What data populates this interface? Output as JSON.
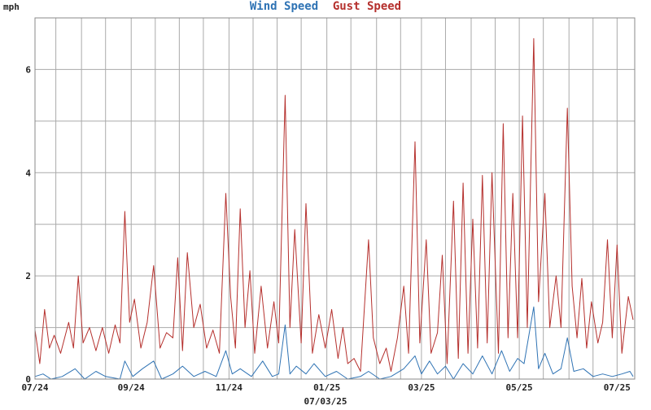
{
  "colors": {
    "wind": "#2f73b4",
    "gust": "#b5302d",
    "grid": "#aaaaaa",
    "frame": "#888888"
  },
  "chart_data": {
    "type": "line",
    "title": [
      "Wind Speed",
      "Gust Speed"
    ],
    "ylabel": "mph",
    "xlabel": "07/03/25",
    "ylim": [
      0,
      7
    ],
    "y_ticks": [
      0,
      2,
      4,
      6
    ],
    "x_range": [
      "2024-07-03",
      "2025-07-12"
    ],
    "x_ticks": [
      {
        "date": "2024-07-01",
        "label": "07/24"
      },
      {
        "date": "2024-09-01",
        "label": "09/24"
      },
      {
        "date": "2024-11-01",
        "label": "11/24"
      },
      {
        "date": "2025-01-01",
        "label": "01/25"
      },
      {
        "date": "2025-03-01",
        "label": "03/25"
      },
      {
        "date": "2025-05-01",
        "label": "05/25"
      },
      {
        "date": "2025-07-01",
        "label": "07/25"
      }
    ],
    "grid": true,
    "series": [
      {
        "name": "Gust Speed",
        "color": "#b5302d",
        "points": [
          [
            "2024-07-03",
            0.95
          ],
          [
            "2024-07-06",
            0.3
          ],
          [
            "2024-07-09",
            1.35
          ],
          [
            "2024-07-12",
            0.6
          ],
          [
            "2024-07-15",
            0.85
          ],
          [
            "2024-07-19",
            0.5
          ],
          [
            "2024-07-24",
            1.1
          ],
          [
            "2024-07-27",
            0.6
          ],
          [
            "2024-07-30",
            2.0
          ],
          [
            "2024-08-02",
            0.7
          ],
          [
            "2024-08-06",
            1.0
          ],
          [
            "2024-08-10",
            0.55
          ],
          [
            "2024-08-14",
            1.0
          ],
          [
            "2024-08-18",
            0.5
          ],
          [
            "2024-08-22",
            1.05
          ],
          [
            "2024-08-25",
            0.7
          ],
          [
            "2024-08-28",
            3.25
          ],
          [
            "2024-08-31",
            1.1
          ],
          [
            "2024-09-03",
            1.55
          ],
          [
            "2024-09-07",
            0.6
          ],
          [
            "2024-09-11",
            1.1
          ],
          [
            "2024-09-15",
            2.2
          ],
          [
            "2024-09-19",
            0.6
          ],
          [
            "2024-09-23",
            0.9
          ],
          [
            "2024-09-27",
            0.8
          ],
          [
            "2024-09-30",
            2.35
          ],
          [
            "2024-10-03",
            0.55
          ],
          [
            "2024-10-06",
            2.45
          ],
          [
            "2024-10-10",
            1.0
          ],
          [
            "2024-10-14",
            1.45
          ],
          [
            "2024-10-18",
            0.6
          ],
          [
            "2024-10-22",
            0.95
          ],
          [
            "2024-10-26",
            0.5
          ],
          [
            "2024-10-30",
            3.6
          ],
          [
            "2024-11-02",
            1.6
          ],
          [
            "2024-11-05",
            0.6
          ],
          [
            "2024-11-08",
            3.3
          ],
          [
            "2024-11-11",
            1.0
          ],
          [
            "2024-11-14",
            2.1
          ],
          [
            "2024-11-17",
            0.5
          ],
          [
            "2024-11-21",
            1.8
          ],
          [
            "2024-11-25",
            0.6
          ],
          [
            "2024-11-29",
            1.5
          ],
          [
            "2024-12-02",
            0.7
          ],
          [
            "2024-12-06",
            5.5
          ],
          [
            "2024-12-09",
            1.0
          ],
          [
            "2024-12-12",
            2.9
          ],
          [
            "2024-12-16",
            0.7
          ],
          [
            "2024-12-19",
            3.4
          ],
          [
            "2024-12-23",
            0.5
          ],
          [
            "2024-12-27",
            1.25
          ],
          [
            "2024-12-31",
            0.6
          ],
          [
            "2025-01-04",
            1.35
          ],
          [
            "2025-01-08",
            0.4
          ],
          [
            "2025-01-11",
            1.0
          ],
          [
            "2025-01-14",
            0.3
          ],
          [
            "2025-01-18",
            0.4
          ],
          [
            "2025-01-22",
            0.15
          ],
          [
            "2025-01-27",
            2.7
          ],
          [
            "2025-01-30",
            0.8
          ],
          [
            "2025-02-03",
            0.3
          ],
          [
            "2025-02-07",
            0.6
          ],
          [
            "2025-02-10",
            0.15
          ],
          [
            "2025-02-14",
            0.8
          ],
          [
            "2025-02-18",
            1.8
          ],
          [
            "2025-02-21",
            0.5
          ],
          [
            "2025-02-25",
            4.6
          ],
          [
            "2025-02-28",
            0.7
          ],
          [
            "2025-03-04",
            2.7
          ],
          [
            "2025-03-07",
            0.5
          ],
          [
            "2025-03-11",
            0.9
          ],
          [
            "2025-03-14",
            2.4
          ],
          [
            "2025-03-17",
            0.3
          ],
          [
            "2025-03-21",
            3.45
          ],
          [
            "2025-03-24",
            0.4
          ],
          [
            "2025-03-27",
            3.8
          ],
          [
            "2025-03-30",
            0.5
          ],
          [
            "2025-04-02",
            3.1
          ],
          [
            "2025-04-05",
            0.6
          ],
          [
            "2025-04-08",
            3.95
          ],
          [
            "2025-04-11",
            0.7
          ],
          [
            "2025-04-14",
            4.0
          ],
          [
            "2025-04-18",
            0.5
          ],
          [
            "2025-04-21",
            4.95
          ],
          [
            "2025-04-24",
            0.8
          ],
          [
            "2025-04-27",
            3.6
          ],
          [
            "2025-04-30",
            0.8
          ],
          [
            "2025-05-03",
            5.1
          ],
          [
            "2025-05-06",
            1.0
          ],
          [
            "2025-05-10",
            6.6
          ],
          [
            "2025-05-13",
            1.5
          ],
          [
            "2025-05-17",
            3.6
          ],
          [
            "2025-05-20",
            1.0
          ],
          [
            "2025-05-24",
            2.0
          ],
          [
            "2025-05-27",
            1.0
          ],
          [
            "2025-05-31",
            5.25
          ],
          [
            "2025-06-03",
            1.8
          ],
          [
            "2025-06-06",
            0.8
          ],
          [
            "2025-06-09",
            1.95
          ],
          [
            "2025-06-12",
            0.6
          ],
          [
            "2025-06-15",
            1.5
          ],
          [
            "2025-06-19",
            0.7
          ],
          [
            "2025-06-22",
            1.1
          ],
          [
            "2025-06-25",
            2.7
          ],
          [
            "2025-06-28",
            0.8
          ],
          [
            "2025-07-01",
            2.6
          ],
          [
            "2025-07-04",
            0.5
          ],
          [
            "2025-07-08",
            1.6
          ],
          [
            "2025-07-11",
            1.15
          ]
        ]
      },
      {
        "name": "Wind Speed",
        "color": "#2f73b4",
        "points": [
          [
            "2024-07-03",
            0.05
          ],
          [
            "2024-07-08",
            0.1
          ],
          [
            "2024-07-13",
            0.0
          ],
          [
            "2024-07-20",
            0.05
          ],
          [
            "2024-07-28",
            0.2
          ],
          [
            "2024-08-03",
            0.0
          ],
          [
            "2024-08-10",
            0.15
          ],
          [
            "2024-08-16",
            0.05
          ],
          [
            "2024-08-25",
            0.0
          ],
          [
            "2024-08-28",
            0.35
          ],
          [
            "2024-09-02",
            0.05
          ],
          [
            "2024-09-08",
            0.2
          ],
          [
            "2024-09-15",
            0.35
          ],
          [
            "2024-09-20",
            0.0
          ],
          [
            "2024-09-27",
            0.1
          ],
          [
            "2024-10-03",
            0.25
          ],
          [
            "2024-10-10",
            0.05
          ],
          [
            "2024-10-17",
            0.15
          ],
          [
            "2024-10-24",
            0.05
          ],
          [
            "2024-10-30",
            0.55
          ],
          [
            "2024-11-03",
            0.1
          ],
          [
            "2024-11-08",
            0.2
          ],
          [
            "2024-11-15",
            0.05
          ],
          [
            "2024-11-22",
            0.35
          ],
          [
            "2024-11-28",
            0.05
          ],
          [
            "2024-12-02",
            0.1
          ],
          [
            "2024-12-06",
            1.05
          ],
          [
            "2024-12-09",
            0.1
          ],
          [
            "2024-12-13",
            0.25
          ],
          [
            "2024-12-19",
            0.1
          ],
          [
            "2024-12-24",
            0.3
          ],
          [
            "2024-12-31",
            0.05
          ],
          [
            "2025-01-07",
            0.15
          ],
          [
            "2025-01-14",
            0.0
          ],
          [
            "2025-01-22",
            0.05
          ],
          [
            "2025-01-27",
            0.15
          ],
          [
            "2025-02-03",
            0.0
          ],
          [
            "2025-02-10",
            0.05
          ],
          [
            "2025-02-18",
            0.2
          ],
          [
            "2025-02-25",
            0.45
          ],
          [
            "2025-03-01",
            0.1
          ],
          [
            "2025-03-06",
            0.35
          ],
          [
            "2025-03-11",
            0.1
          ],
          [
            "2025-03-16",
            0.25
          ],
          [
            "2025-03-21",
            0.0
          ],
          [
            "2025-03-27",
            0.3
          ],
          [
            "2025-04-02",
            0.1
          ],
          [
            "2025-04-08",
            0.45
          ],
          [
            "2025-04-14",
            0.1
          ],
          [
            "2025-04-20",
            0.55
          ],
          [
            "2025-04-25",
            0.15
          ],
          [
            "2025-04-30",
            0.4
          ],
          [
            "2025-05-04",
            0.3
          ],
          [
            "2025-05-10",
            1.4
          ],
          [
            "2025-05-13",
            0.2
          ],
          [
            "2025-05-17",
            0.5
          ],
          [
            "2025-05-22",
            0.1
          ],
          [
            "2025-05-27",
            0.2
          ],
          [
            "2025-05-31",
            0.8
          ],
          [
            "2025-06-04",
            0.15
          ],
          [
            "2025-06-10",
            0.2
          ],
          [
            "2025-06-16",
            0.05
          ],
          [
            "2025-06-22",
            0.1
          ],
          [
            "2025-06-28",
            0.05
          ],
          [
            "2025-07-04",
            0.1
          ],
          [
            "2025-07-09",
            0.15
          ],
          [
            "2025-07-11",
            0.05
          ]
        ]
      }
    ]
  }
}
